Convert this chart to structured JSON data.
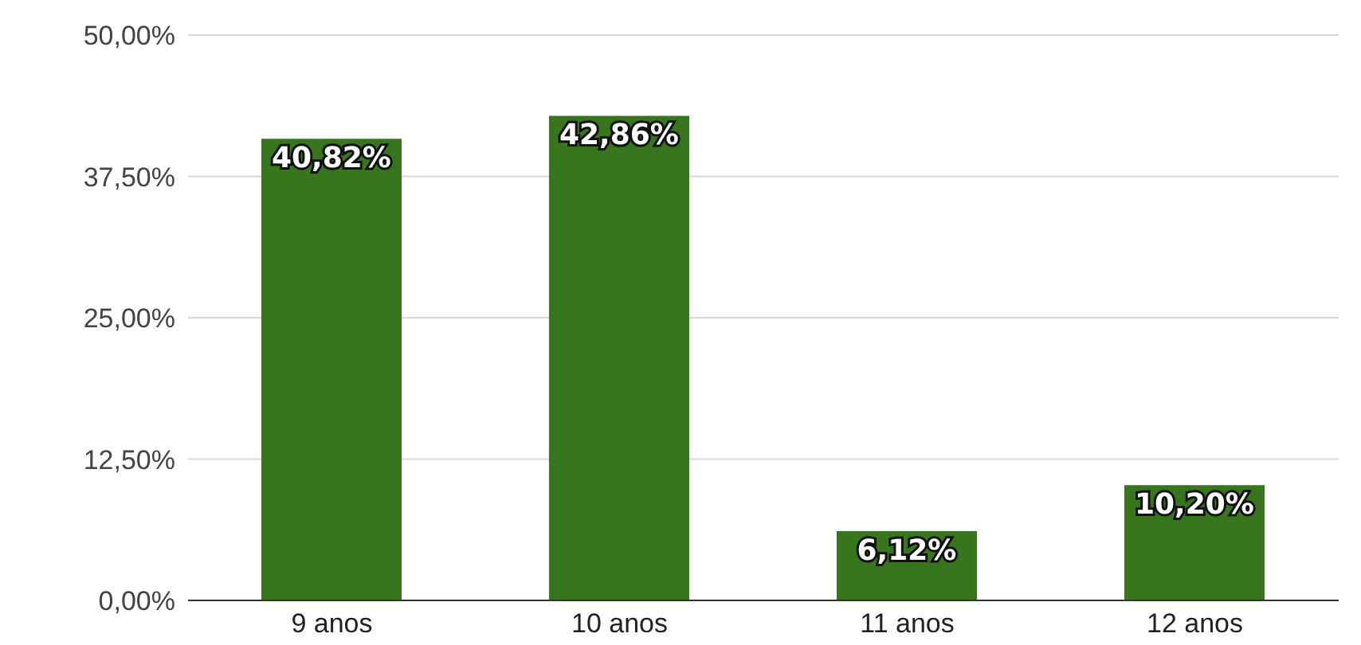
{
  "chart_data": {
    "type": "bar",
    "categories": [
      "9 anos",
      "10 anos",
      "11 anos",
      "12 anos"
    ],
    "values": [
      40.82,
      42.86,
      6.12,
      10.2
    ],
    "value_labels": [
      "40,82%",
      "42,86%",
      "6,12%",
      "10,20%"
    ],
    "color": "#38761d",
    "ylim": [
      0,
      50
    ],
    "yticks": [
      {
        "value": 0,
        "label": "0,00%"
      },
      {
        "value": 12.5,
        "label": "12,50%"
      },
      {
        "value": 25,
        "label": "25,00%"
      },
      {
        "value": 37.5,
        "label": "37,50%"
      },
      {
        "value": 50,
        "label": "50,00%"
      }
    ],
    "grid": "y",
    "legend": false
  }
}
